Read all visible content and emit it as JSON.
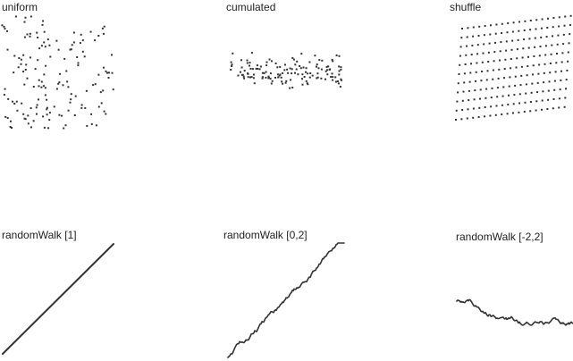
{
  "panels": {
    "uniform": {
      "label": "uniform"
    },
    "cumulated": {
      "label": "cumulated"
    },
    "shuffle": {
      "label": "shuffle"
    },
    "random_walk_1": {
      "label": "randomWalk [1]"
    },
    "random_walk_0_2": {
      "label": "randomWalk [0,2]"
    },
    "random_walk_m2_2": {
      "label": "randomWalk [-2,2]"
    }
  },
  "colors": {
    "ink": "#333333",
    "background": "#ffffff"
  }
}
